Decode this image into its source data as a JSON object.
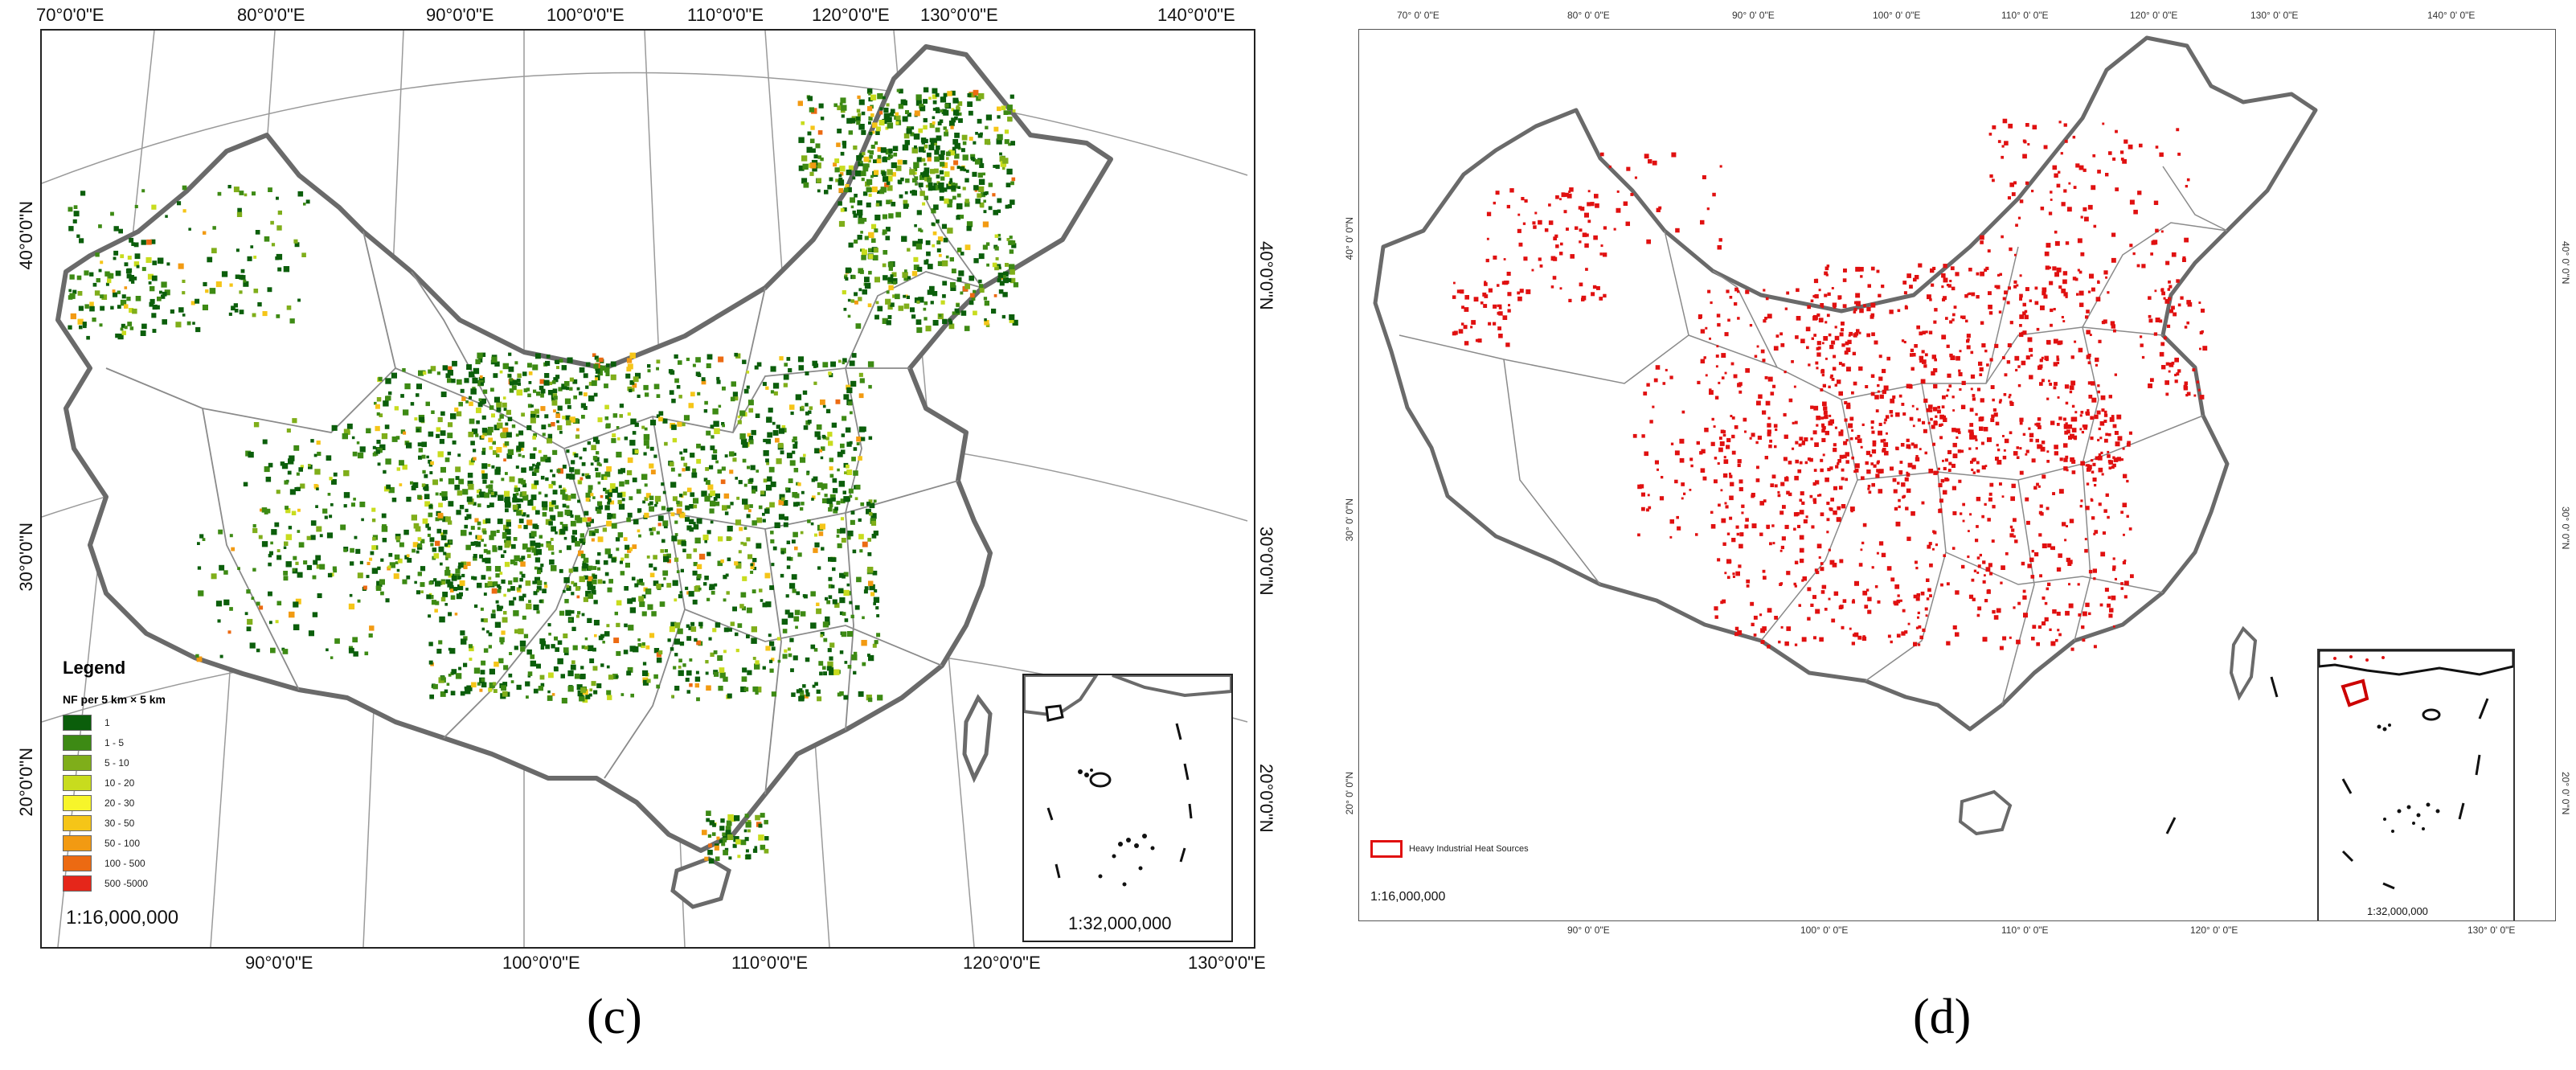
{
  "panels": [
    {
      "id": "c",
      "caption": "(c)",
      "top_ticks": [
        "70°0'0\"E",
        "80°0'0\"E",
        "90°0'0\"E",
        "100°0'0\"E",
        "110°0'0\"E",
        "120°0'0\"E",
        "130°0'0\"E",
        "140°0'0\"E"
      ],
      "bottom_ticks": [
        "90°0'0\"E",
        "100°0'0\"E",
        "110°0'0\"E",
        "120°0'0\"E",
        "130°0'0\"E"
      ],
      "left_ticks": [
        "40°0'0\"N",
        "30°0'0\"N",
        "20°0'0\"N"
      ],
      "right_ticks": [
        "40°0'0\"N",
        "30°0'0\"N",
        "20°0'0\"N"
      ],
      "legend": {
        "title": "Legend",
        "subtitle": "NF per 5 km × 5 km",
        "classes": [
          {
            "label": "1",
            "color": "#0b5e0b"
          },
          {
            "label": "1 - 5",
            "color": "#3d8a14"
          },
          {
            "label": "5 - 10",
            "color": "#7fae1a"
          },
          {
            "label": "10 - 20",
            "color": "#c8dc1e"
          },
          {
            "label": "20 - 30",
            "color": "#f7f52a"
          },
          {
            "label": "30 - 50",
            "color": "#f5c518"
          },
          {
            "label": "50 - 100",
            "color": "#f29a12"
          },
          {
            "label": "100 - 500",
            "color": "#ec6a12"
          },
          {
            "label": "500 -5000",
            "color": "#e5261a"
          }
        ]
      },
      "scale": "1:16,000,000",
      "inset_scale": "1:32,000,000"
    },
    {
      "id": "d",
      "caption": "(d)",
      "top_ticks": [
        "70° 0' 0\"E",
        "80° 0' 0\"E",
        "90° 0' 0\"E",
        "100° 0' 0\"E",
        "110° 0' 0\"E",
        "120° 0' 0\"E",
        "130° 0' 0\"E",
        "140° 0' 0\"E"
      ],
      "bottom_ticks": [
        "90° 0' 0\"E",
        "100° 0' 0\"E",
        "110° 0' 0\"E",
        "120° 0' 0\"E",
        "130° 0' 0\"E"
      ],
      "left_ticks": [
        "40° 0' 0\"N",
        "30° 0' 0\"N",
        "20° 0' 0\"N"
      ],
      "right_ticks": [
        "40° 0' 0\"N",
        "30° 0' 0\"N",
        "20° 0' 0\"N"
      ],
      "legend": {
        "label": "Heavy Industrial Heat Sources",
        "color": "#e01010"
      },
      "scale": "1:16,000,000",
      "inset_scale": "1:32,000,000"
    }
  ]
}
